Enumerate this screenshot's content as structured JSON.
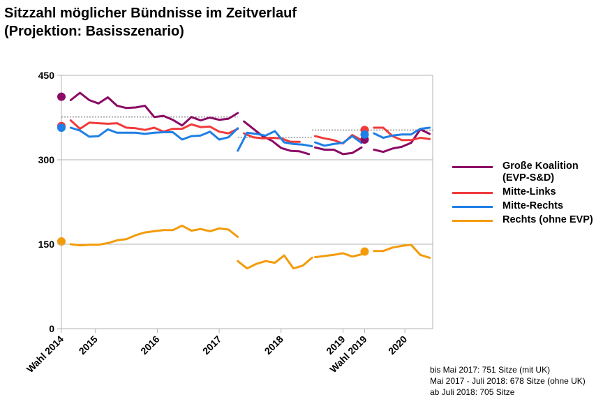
{
  "title": {
    "line1": "Sitzzahl möglicher Bündnisse im Zeitverlauf",
    "line2": "(Projektion: Basisszenario)"
  },
  "notes": [
    "bis Mai 2017: 751 Sitze (mit UK)",
    "Mai 2017 - Juli 2018: 678 Sitze (ohne UK)",
    "ab Juli 2018: 705 Sitze"
  ],
  "chart_data": {
    "type": "line",
    "title": "Sitzzahl möglicher Bündnisse im Zeitverlauf (Projektion: Basisszenario)",
    "xlabel": "",
    "ylabel": "",
    "xlim": [
      0,
      60
    ],
    "ylim": [
      0,
      450
    ],
    "yticks": [
      0,
      150,
      300,
      450
    ],
    "grid": true,
    "legend_position": "right",
    "xticks": [
      {
        "x": 0,
        "label": "Wahl 2014"
      },
      {
        "x": 5.5,
        "label": "2015"
      },
      {
        "x": 15.5,
        "label": "2016"
      },
      {
        "x": 25.5,
        "label": "2017"
      },
      {
        "x": 35.5,
        "label": "2018"
      },
      {
        "x": 45.5,
        "label": "2019"
      },
      {
        "x": 49,
        "label": "Wahl 2019"
      },
      {
        "x": 55.5,
        "label": "2020"
      }
    ],
    "majority_lines": [
      {
        "x": [
          0,
          28.5
        ],
        "y": 376,
        "label": "Mehrheit 751 Sitze"
      },
      {
        "x": 28.5,
        "x2": 40.5,
        "y": 340,
        "label": "Mehrheit 678 Sitze"
      },
      {
        "x": [
          40.5,
          60
        ],
        "y": 353,
        "label": "Mehrheit 705 Sitze"
      }
    ],
    "series": [
      {
        "name": "Große Koalition (EVP-S&D)",
        "color": "#8b0a65",
        "election_2014": 412,
        "election_2019": 336,
        "segments": [
          {
            "x": [
              1.5,
              3,
              4.5,
              6,
              7.5,
              9,
              10.5,
              12,
              13.5,
              15,
              16.5,
              18,
              19.5,
              21,
              22.5,
              24,
              25.5,
              27,
              28.5
            ],
            "y": [
              406,
              419,
              406,
              400,
              411,
              396,
              392,
              393,
              396,
              376,
              378,
              371,
              361,
              376,
              370,
              375,
              371,
              373,
              383
            ]
          },
          {
            "x": [
              29.5,
              31,
              32.5,
              34,
              35.5,
              37,
              38.5,
              40
            ],
            "y": [
              368,
              355,
              342,
              334,
              321,
              316,
              315,
              310
            ]
          },
          {
            "x": [
              41,
              42.5,
              44,
              45.5,
              47,
              48.5
            ],
            "y": [
              322,
              318,
              318,
              310,
              312,
              322
            ]
          },
          {
            "x": [
              50.5,
              52,
              53.5,
              55,
              56.5,
              58,
              59.5
            ],
            "y": [
              318,
              314,
              320,
              323,
              330,
              354,
              346
            ]
          }
        ]
      },
      {
        "name": "Mitte-Links",
        "color": "#f03b3b",
        "election_2014": 360,
        "election_2019": 353,
        "segments": [
          {
            "x": [
              1.5,
              3,
              4.5,
              6,
              7.5,
              9,
              10.5,
              12,
              13.5,
              15,
              16.5,
              18,
              19.5,
              21,
              22.5,
              24,
              25.5,
              27,
              28.5
            ],
            "y": [
              370,
              355,
              366,
              365,
              364,
              365,
              357,
              356,
              353,
              357,
              350,
              355,
              355,
              363,
              358,
              359,
              350,
              347,
              355
            ]
          },
          {
            "x": [
              29.5,
              31,
              32.5,
              34,
              35.5,
              37,
              38.5
            ],
            "y": [
              347,
              340,
              338,
              339,
              338,
              332,
              332
            ]
          },
          {
            "x": [
              41,
              42.5,
              44,
              45.5,
              47,
              48.5
            ],
            "y": [
              342,
              338,
              335,
              329,
              344,
              335
            ]
          },
          {
            "x": [
              50.5,
              52,
              53.5,
              55,
              56.5,
              58,
              59.5
            ],
            "y": [
              357,
              357,
              342,
              335,
              335,
              339,
              337
            ]
          }
        ]
      },
      {
        "name": "Mitte-Rechts",
        "color": "#1f7fe6",
        "election_2014": 357,
        "election_2019": 345,
        "segments": [
          {
            "x": [
              1.5,
              3,
              4.5,
              6,
              7.5,
              9,
              10.5,
              12,
              13.5,
              15,
              16.5,
              18,
              19.5,
              21,
              22.5,
              24,
              25.5,
              27,
              28.5
            ],
            "y": [
              357,
              352,
              341,
              342,
              354,
              348,
              348,
              348,
              346,
              348,
              349,
              349,
              336,
              342,
              343,
              350,
              336,
              340,
              356
            ]
          },
          {
            "x": [
              28.5,
              30,
              31.5,
              33,
              34.5,
              36,
              37.5,
              39,
              40.5
            ],
            "y": [
              316,
              348,
              346,
              343,
              351,
              331,
              328,
              327,
              324
            ]
          },
          {
            "x": [
              41,
              42.5,
              44,
              45.5,
              47,
              48.5
            ],
            "y": [
              331,
              325,
              328,
              330,
              342,
              330
            ]
          },
          {
            "x": [
              50.5,
              52,
              53.5,
              55,
              56.5,
              58,
              59.5
            ],
            "y": [
              347,
              339,
              343,
              345,
              345,
              355,
              357
            ]
          }
        ]
      },
      {
        "name": "Rechts (ohne EVP)",
        "color": "#f39b0b",
        "election_2014": 155,
        "election_2019": 137,
        "segments": [
          {
            "x": [
              1.5,
              3,
              4.5,
              6,
              7.5,
              9,
              10.5,
              12,
              13.5,
              15,
              16.5,
              18,
              19.5,
              21,
              22.5,
              24,
              25.5,
              27,
              28.5
            ],
            "y": [
              150,
              148,
              149,
              149,
              152,
              157,
              159,
              166,
              171,
              173,
              175,
              175,
              183,
              174,
              177,
              173,
              178,
              176,
              163
            ]
          },
          {
            "x": [
              28.5,
              30,
              31.5,
              33,
              34.5,
              36,
              37.5,
              39,
              40.5
            ],
            "y": [
              120,
              107,
              115,
              120,
              117,
              130,
              107,
              112,
              126
            ]
          },
          {
            "x": [
              41,
              42.5,
              44,
              45.5,
              47,
              48.5
            ],
            "y": [
              127,
              129,
              131,
              134,
              128,
              132
            ]
          },
          {
            "x": [
              50.5,
              52,
              53.5,
              55,
              56.5,
              58,
              59.5
            ],
            "y": [
              138,
              138,
              144,
              147,
              149,
              131,
              126
            ]
          }
        ]
      }
    ]
  }
}
